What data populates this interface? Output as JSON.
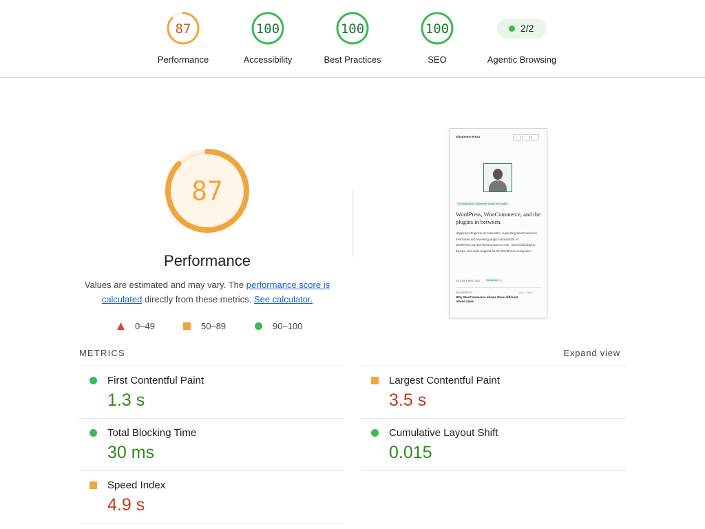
{
  "header": {
    "categories": [
      {
        "score": 87,
        "label": "Performance",
        "color": "#f2a53f"
      },
      {
        "score": 100,
        "label": "Accessibility",
        "color": "#3cba54"
      },
      {
        "score": 100,
        "label": "Best Practices",
        "color": "#3cba54"
      },
      {
        "score": 100,
        "label": "SEO",
        "color": "#3cba54"
      }
    ],
    "agentic": {
      "badge": "2/2",
      "label": "Agentic Browsing",
      "color": "#3cba54"
    }
  },
  "summary": {
    "score": 87,
    "color": "#f2a53f",
    "title": "Performance",
    "description": {
      "lead": "Values are estimated and may vary. The ",
      "link1": "performance score is calculated",
      "middle": " directly from these metrics. ",
      "link2": "See calculator."
    },
    "legend": [
      {
        "label": "0–49",
        "shape": "triangle",
        "color": "#e0443a"
      },
      {
        "label": "50–89",
        "shape": "square",
        "color": "#f2a53f"
      },
      {
        "label": "90–100",
        "shape": "circle",
        "color": "#3cba54"
      }
    ]
  },
  "screenshot": {
    "site_name": "Shameem Reza",
    "tagline": "Turning WooCommerce chaos into calm.",
    "headline": "WordPress, WooCommerce, and the plugins in between.",
    "bio": "Happiness Engineer at Automattic, supporting WooCommerce merchants and reviewing plugin submissions on WordPress.org and WooCommerce.com. I also build plugins, themes, and code snippets for the WordPress ecosystem.",
    "section": "RECENT WRITING",
    "all_link": "All articles →",
    "post_tag": "WORDPRESS",
    "post_date": "Jul 9 · 4 min",
    "post_title": "Why WooCommerce shows three different refund rates"
  },
  "metrics": {
    "heading": "METRICS",
    "toggle": "Expand view",
    "items": [
      {
        "name": "First Contentful Paint",
        "value": "1.3 s",
        "shape": "circle",
        "color": "#3cba54",
        "value_color": "#2e8a19"
      },
      {
        "name": "Largest Contentful Paint",
        "value": "3.5 s",
        "shape": "square",
        "color": "#f2a53f",
        "value_color": "#c23b1d"
      },
      {
        "name": "Total Blocking Time",
        "value": "30 ms",
        "shape": "circle",
        "color": "#3cba54",
        "value_color": "#2e8a19"
      },
      {
        "name": "Cumulative Layout Shift",
        "value": "0.015",
        "shape": "circle",
        "color": "#3cba54",
        "value_color": "#2e8a19"
      },
      {
        "name": "Speed Index",
        "value": "4.9 s",
        "shape": "square",
        "color": "#f2a53f",
        "value_color": "#c23b1d"
      }
    ]
  }
}
